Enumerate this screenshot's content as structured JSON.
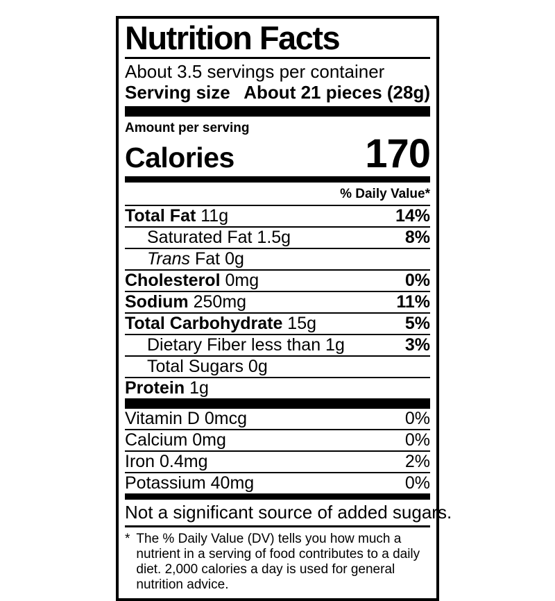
{
  "colors": {
    "text": "#000000",
    "background": "#ffffff",
    "bar": "#000000"
  },
  "label": {
    "title": "Nutrition Facts",
    "servings_per_container": "About 3.5 servings per container",
    "serving_size_label": "Serving size",
    "serving_size_value": "About 21 pieces (28g)",
    "amount_per_serving": "Amount per serving",
    "calories_label": "Calories",
    "calories_value": "170",
    "daily_value_header": "% Daily Value*",
    "nutrients": [
      {
        "strong": "Total Fat",
        "em": "",
        "text": " 11g",
        "dv": "14%"
      },
      {
        "strong": "",
        "em": "",
        "text": "Saturated Fat 1.5g",
        "dv": "8%"
      },
      {
        "strong": "",
        "em": "Trans",
        "text": " Fat 0g",
        "dv": ""
      },
      {
        "strong": "Cholesterol",
        "em": "",
        "text": " 0mg",
        "dv": "0%"
      },
      {
        "strong": "Sodium",
        "em": "",
        "text": " 250mg",
        "dv": "11%"
      },
      {
        "strong": "Total Carbohydrate",
        "em": "",
        "text": " 15g",
        "dv": "5%"
      },
      {
        "strong": "",
        "em": "",
        "text": "Dietary Fiber less than 1g",
        "dv": "3%"
      },
      {
        "strong": "",
        "em": "",
        "text": "Total Sugars 0g",
        "dv": ""
      },
      {
        "strong": "Protein",
        "em": "",
        "text": " 1g",
        "dv": ""
      }
    ],
    "vitamins": [
      {
        "text": "Vitamin D 0mcg",
        "dv": "0%"
      },
      {
        "text": "Calcium 0mg",
        "dv": "0%"
      },
      {
        "text": "Iron 0.4mg",
        "dv": "2%"
      },
      {
        "text": "Potassium 40mg",
        "dv": "0%"
      }
    ],
    "not_significant": "Not a significant source of added sugars.",
    "footnote_marker": "*",
    "footnote": "The % Daily Value (DV) tells you how much a nutrient in a serving of food contributes to a daily diet. 2,000 calories a day is used for general nutrition advice."
  }
}
